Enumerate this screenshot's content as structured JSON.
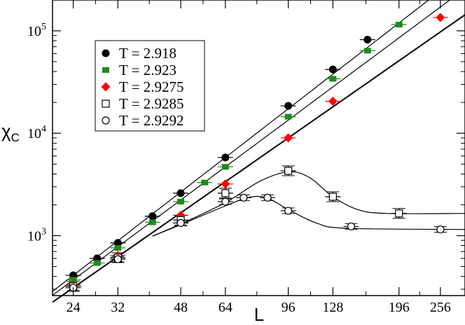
{
  "chart_data": {
    "type": "scatter",
    "xlabel": "L",
    "ylabel_main": "χ",
    "ylabel_sub": "C",
    "xscale": "log",
    "yscale": "log",
    "xlim": [
      21,
      300
    ],
    "ylim": [
      260,
      200000
    ],
    "xticks": [
      24,
      32,
      48,
      64,
      96,
      128,
      196,
      256
    ],
    "xtick_labels": [
      "24",
      "32",
      "48",
      "64",
      "96",
      "128",
      "196",
      "256"
    ],
    "yticks": [
      1000,
      10000,
      100000
    ],
    "ytick_labels": [
      {
        "base": "10",
        "exp": "3"
      },
      {
        "base": "10",
        "exp": "4"
      },
      {
        "base": "10",
        "exp": "5"
      }
    ],
    "grid": false,
    "legend_position": "top-left",
    "series": [
      {
        "name": "T = 2.918",
        "marker": "filled-circle",
        "color": "#000000",
        "points": [
          [
            24,
            410
          ],
          [
            28,
            600
          ],
          [
            32,
            850
          ],
          [
            40,
            1550
          ],
          [
            48,
            2600
          ],
          [
            64,
            5800
          ],
          [
            96,
            18500
          ],
          [
            128,
            42000
          ],
          [
            160,
            82000
          ]
        ]
      },
      {
        "name": "T = 2.923",
        "marker": "filled-square",
        "color": "#1f8a1f",
        "points": [
          [
            24,
            370
          ],
          [
            28,
            540
          ],
          [
            32,
            760
          ],
          [
            40,
            1350
          ],
          [
            48,
            2150
          ],
          [
            56,
            3300
          ],
          [
            64,
            4700
          ],
          [
            96,
            14500
          ],
          [
            128,
            34000
          ],
          [
            160,
            64000
          ],
          [
            196,
            115000
          ]
        ]
      },
      {
        "name": "T = 2.9275",
        "marker": "filled-diamond",
        "color": "#ff0000",
        "points": [
          [
            24,
            330
          ],
          [
            32,
            640
          ],
          [
            48,
            1580
          ],
          [
            64,
            3200
          ],
          [
            96,
            9000
          ],
          [
            128,
            20500
          ],
          [
            256,
            135000
          ]
        ]
      },
      {
        "name": "T = 2.9285",
        "marker": "open-square",
        "color": "#000000",
        "points": [
          [
            24,
            320
          ],
          [
            32,
            610
          ],
          [
            48,
            1420
          ],
          [
            64,
            2600
          ],
          [
            96,
            4300
          ],
          [
            128,
            2400
          ],
          [
            196,
            1650
          ]
        ]
      },
      {
        "name": "T = 2.9292",
        "marker": "open-circle",
        "color": "#000000",
        "points": [
          [
            24,
            310
          ],
          [
            32,
            590
          ],
          [
            48,
            1330
          ],
          [
            64,
            2150
          ],
          [
            72,
            2350
          ],
          [
            84,
            2350
          ],
          [
            96,
            1750
          ],
          [
            144,
            1230
          ],
          [
            256,
            1150
          ]
        ]
      }
    ],
    "fit_curves": [
      {
        "kind": "power",
        "from": [
          21,
          300
        ],
        "through": [
          [
            24,
            410
          ],
          [
            64,
            5800
          ]
        ]
      },
      {
        "kind": "power",
        "from": [
          21,
          300
        ],
        "through": [
          [
            24,
            370
          ],
          [
            64,
            4700
          ]
        ]
      },
      {
        "kind": "power",
        "from": [
          21,
          300
        ],
        "through": [
          [
            24,
            310
          ],
          [
            96,
            9000
          ]
        ]
      },
      {
        "kind": "smooth",
        "points": [
          [
            40,
            990
          ],
          [
            48,
            1300
          ],
          [
            64,
            2100
          ],
          [
            80,
            3400
          ],
          [
            96,
            4200
          ],
          [
            110,
            3700
          ],
          [
            128,
            2400
          ],
          [
            150,
            1800
          ],
          [
            180,
            1650
          ],
          [
            300,
            1650
          ]
        ]
      },
      {
        "kind": "smooth",
        "points": [
          [
            40,
            990
          ],
          [
            48,
            1280
          ],
          [
            64,
            1950
          ],
          [
            75,
            2380
          ],
          [
            84,
            2320
          ],
          [
            96,
            1800
          ],
          [
            115,
            1330
          ],
          [
            140,
            1180
          ],
          [
            300,
            1150
          ]
        ]
      }
    ]
  }
}
